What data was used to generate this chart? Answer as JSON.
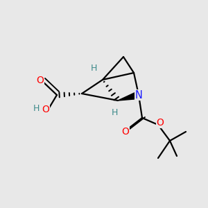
{
  "bg_color": "#e8e8e8",
  "atom_colors": {
    "C": "#000000",
    "O": "#ff0000",
    "N": "#1a1aff",
    "H": "#3d8a8a"
  },
  "bond_color": "#000000",
  "bond_width": 1.6,
  "figsize": [
    3.0,
    3.0
  ],
  "dpi": 100
}
